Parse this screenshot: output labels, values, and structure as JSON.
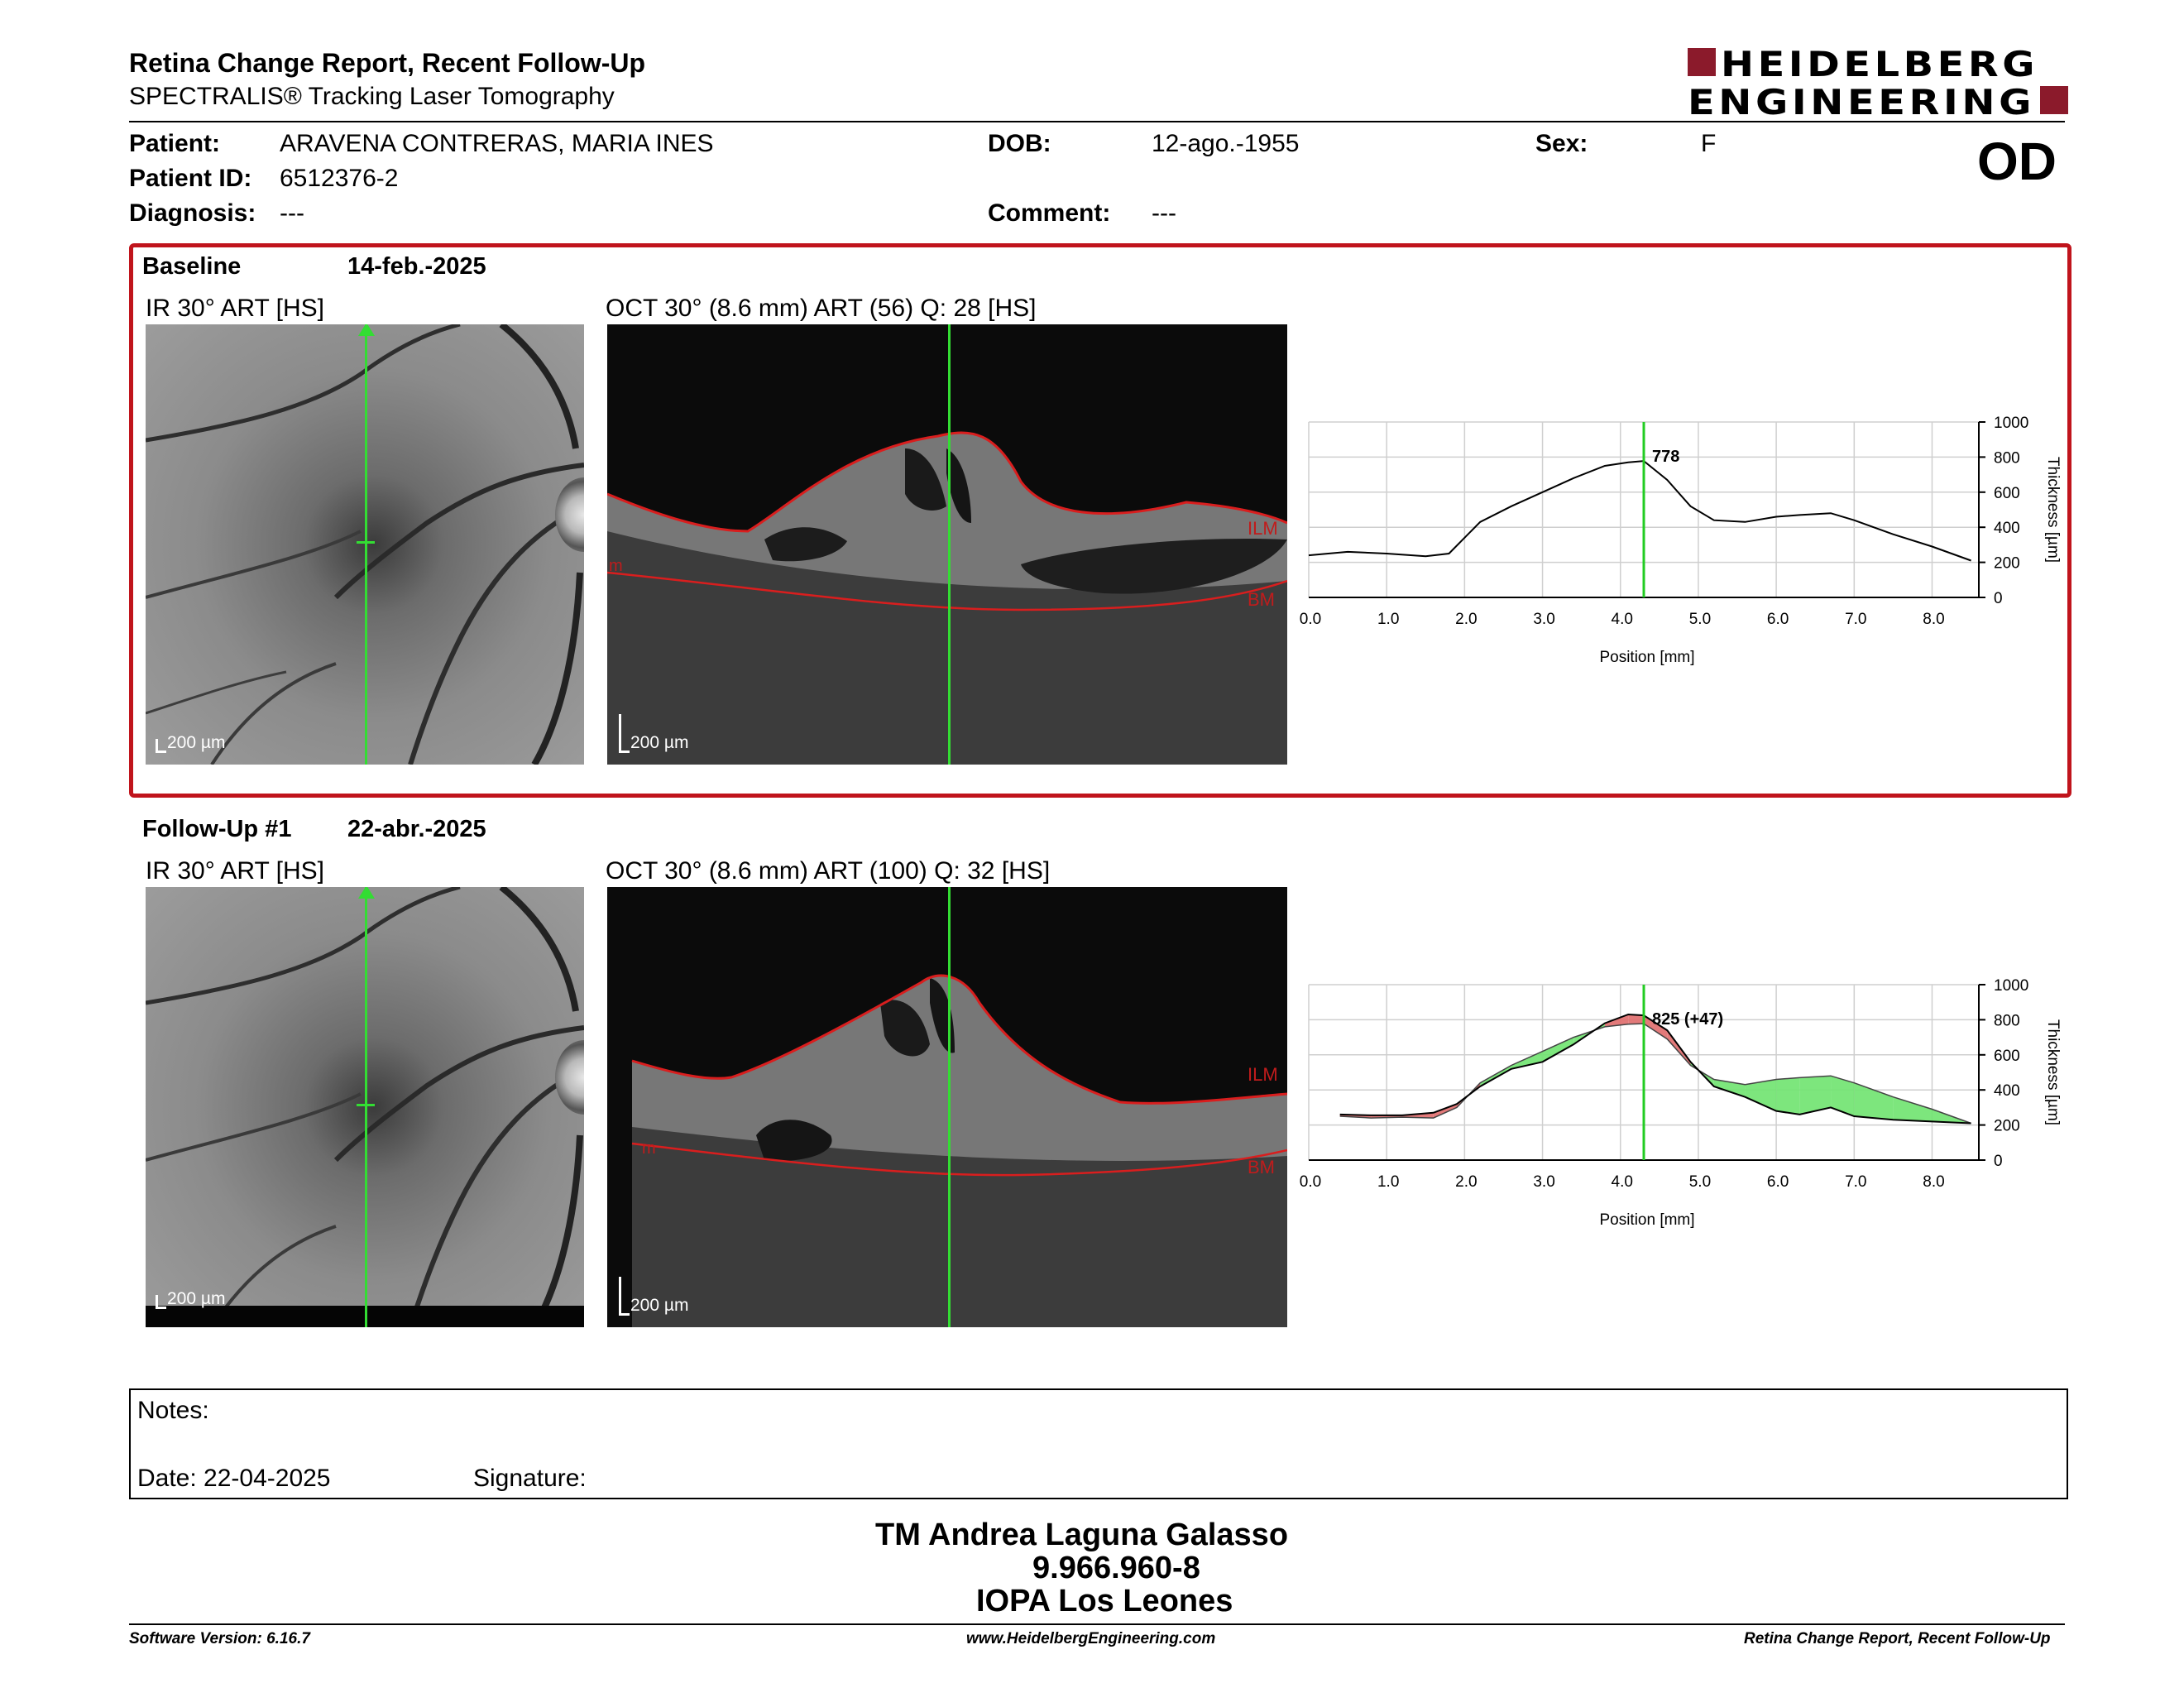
{
  "report": {
    "title": "Retina Change Report, Recent Follow-Up",
    "subtitle": "SPECTRALIS® Tracking Laser Tomography"
  },
  "logo": {
    "line1": "HEIDELBERG",
    "line2": "ENGINEERING",
    "colors": {
      "brand": "#8b1a2b"
    }
  },
  "patient": {
    "name_label": "Patient:",
    "name": "ARAVENA CONTRERAS, MARIA INES",
    "id_label": "Patient ID:",
    "id": "6512376-2",
    "diagnosis_label": "Diagnosis:",
    "diagnosis": "---",
    "dob_label": "DOB:",
    "dob": "12-ago.-1955",
    "comment_label": "Comment:",
    "comment": "---",
    "sex_label": "Sex:",
    "sex": "F",
    "eye": "OD"
  },
  "baseline": {
    "label": "Baseline",
    "date": "14-feb.-2025",
    "ir_caption": "IR 30° ART [HS]",
    "oct_caption": "OCT 30° (8.6 mm) ART (56) Q: 28 [HS]",
    "scale_ir": "200 µm",
    "scale_oct": "200 µm",
    "ilm_label": "ILM",
    "bm_label": "BM",
    "left_tag": "m"
  },
  "followup": {
    "label": "Follow-Up #1",
    "date": "22-abr.-2025",
    "ir_caption": "IR 30° ART [HS]",
    "oct_caption": "OCT 30° (8.6 mm) ART (100) Q: 32 [HS]",
    "scale_ir": "200 µm",
    "scale_oct": "200 µm",
    "ilm_label": "ILM",
    "bm_label": "BM",
    "left_tag": "m"
  },
  "chart_data": [
    {
      "type": "line",
      "xlabel": "Position [mm]",
      "ylabel": "Thickness [µm]",
      "xlim": [
        0,
        8.6
      ],
      "ylim": [
        0,
        1000
      ],
      "xticks": [
        "0.0",
        "1.0",
        "2.0",
        "3.0",
        "4.0",
        "5.0",
        "6.0",
        "7.0",
        "8.0"
      ],
      "yticks": [
        "0",
        "200",
        "400",
        "600",
        "800",
        "1000"
      ],
      "cursor_x": 4.3,
      "cursor_label": "778",
      "grid": true,
      "series": [
        {
          "x": [
            0,
            0.5,
            1,
            1.5,
            1.8,
            2.2,
            2.6,
            3.0,
            3.4,
            3.8,
            4.1,
            4.3,
            4.6,
            4.9,
            5.2,
            5.6,
            6.0,
            6.3,
            6.7,
            7.0,
            7.5,
            8.0,
            8.5
          ],
          "y": [
            240,
            260,
            250,
            235,
            250,
            430,
            520,
            600,
            680,
            750,
            770,
            778,
            670,
            520,
            440,
            430,
            460,
            470,
            480,
            440,
            360,
            290,
            210
          ]
        }
      ]
    },
    {
      "type": "area",
      "xlabel": "Position [mm]",
      "ylabel": "Thickness [µm]",
      "xlim": [
        0,
        8.6
      ],
      "ylim": [
        0,
        1000
      ],
      "xticks": [
        "0.0",
        "1.0",
        "2.0",
        "3.0",
        "4.0",
        "5.0",
        "6.0",
        "7.0",
        "8.0"
      ],
      "yticks": [
        "0",
        "200",
        "400",
        "600",
        "800",
        "1000"
      ],
      "cursor_x": 4.3,
      "cursor_label": "825 (+47)",
      "grid": true,
      "colors": {
        "thicker": "#e06b6b",
        "thinner": "#6fe36f"
      },
      "series": [
        {
          "x": [
            0.4,
            0.8,
            1.2,
            1.6,
            1.9,
            2.2,
            2.6,
            3.0,
            3.4,
            3.8,
            4.1,
            4.3,
            4.6,
            4.9,
            5.2,
            5.6,
            6.0,
            6.3,
            6.7,
            7.0,
            7.5,
            8.0,
            8.5
          ],
          "y": [
            260,
            255,
            255,
            270,
            320,
            420,
            520,
            560,
            660,
            780,
            830,
            825,
            740,
            560,
            420,
            360,
            280,
            260,
            300,
            250,
            230,
            220,
            210
          ]
        },
        {
          "x": [
            0.4,
            0.8,
            1.2,
            1.6,
            1.9,
            2.2,
            2.6,
            3.0,
            3.4,
            3.8,
            4.1,
            4.3,
            4.6,
            4.9,
            5.2,
            5.6,
            6.0,
            6.3,
            6.7,
            7.0,
            7.5,
            8.0,
            8.5
          ],
          "y": [
            250,
            240,
            245,
            240,
            300,
            440,
            540,
            620,
            700,
            760,
            775,
            778,
            690,
            540,
            460,
            430,
            460,
            470,
            480,
            440,
            360,
            290,
            210
          ]
        }
      ]
    }
  ],
  "notes": {
    "label": "Notes:",
    "date_label": "Date: 22-04-2025",
    "signature_label": "Signature:"
  },
  "signatory": {
    "name": "TM Andrea Laguna Galasso",
    "id": "9.966.960-8",
    "org": "IOPA Los Leones"
  },
  "footer": {
    "software": "Software Version: 6.16.7",
    "url": "www.HeidelbergEngineering.com",
    "report": "Retina Change Report, Recent Follow-Up"
  }
}
